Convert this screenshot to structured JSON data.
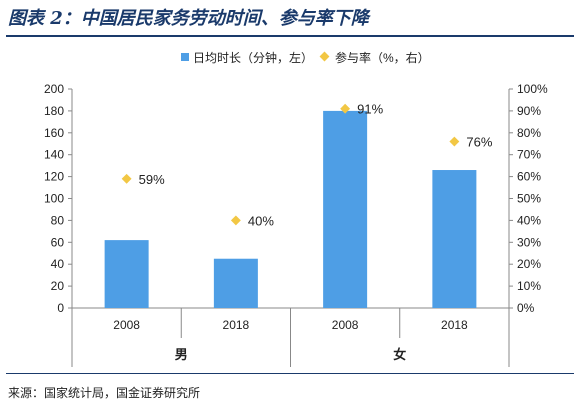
{
  "title": "图表 2：中国居民家务劳动时间、参与率下降",
  "source": "来源：国家统计局，国金证券研究所",
  "chart_data": {
    "type": "bar",
    "categories": [
      "2008",
      "2018",
      "2008",
      "2018"
    ],
    "groups": [
      {
        "label": "男",
        "categories": [
          "2008",
          "2018"
        ]
      },
      {
        "label": "女",
        "categories": [
          "2008",
          "2018"
        ]
      }
    ],
    "series": [
      {
        "name": "日均时长（分钟，左）",
        "type": "bar",
        "axis": "left",
        "color": "#4e9ee5",
        "values": [
          62,
          45,
          180,
          126
        ]
      },
      {
        "name": "参与率（%，右）",
        "type": "scatter",
        "axis": "right",
        "color": "#f2c744",
        "values": [
          59,
          40,
          91,
          76
        ],
        "labels": [
          "59%",
          "40%",
          "91%",
          "76%"
        ]
      }
    ],
    "ylim": [
      0,
      200
    ],
    "yticks": [
      "0",
      "20",
      "40",
      "60",
      "80",
      "100",
      "120",
      "140",
      "160",
      "180",
      "200"
    ],
    "y2lim": [
      0,
      100
    ],
    "y2ticks": [
      "0%",
      "10%",
      "20%",
      "30%",
      "40%",
      "50%",
      "60%",
      "70%",
      "80%",
      "90%",
      "100%"
    ],
    "legend_position": "top",
    "grid": false
  }
}
